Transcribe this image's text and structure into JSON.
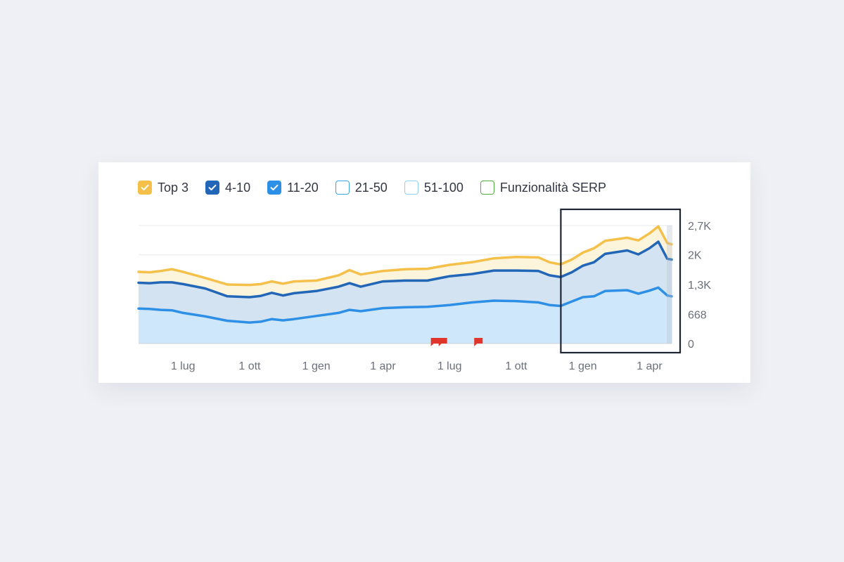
{
  "legend": {
    "items": [
      {
        "label": "Top 3",
        "checked": true,
        "color": "#f5c04a",
        "border": "#f5c04a"
      },
      {
        "label": "4-10",
        "checked": true,
        "color": "#2266b8",
        "border": "#2266b8"
      },
      {
        "label": "11-20",
        "checked": true,
        "color": "#2e8fe6",
        "border": "#2e8fe6"
      },
      {
        "label": "21-50",
        "checked": false,
        "color": "#ffffff",
        "border": "#3aa4e0"
      },
      {
        "label": "51-100",
        "checked": false,
        "color": "#ffffff",
        "border": "#8fd0f2"
      },
      {
        "label": "Funzionalità SERP",
        "checked": false,
        "color": "#ffffff",
        "border": "#4fae3c"
      }
    ]
  },
  "chart_data": {
    "type": "area",
    "title": "",
    "xlabel": "",
    "ylabel": "",
    "ylim": [
      0,
      2700
    ],
    "y_ticks": [
      {
        "value": 0,
        "label": "0"
      },
      {
        "value": 668,
        "label": "668"
      },
      {
        "value": 1350,
        "label": "1,3K"
      },
      {
        "value": 2030,
        "label": "2K"
      },
      {
        "value": 2700,
        "label": "2,7K"
      }
    ],
    "x_range": [
      0,
      24
    ],
    "x_ticks": [
      {
        "x": 2,
        "label": "1 lug"
      },
      {
        "x": 5,
        "label": "1 ott"
      },
      {
        "x": 8,
        "label": "1 gen"
      },
      {
        "x": 11,
        "label": "1 apr"
      },
      {
        "x": 14,
        "label": "1 lug"
      },
      {
        "x": 17,
        "label": "1 ott"
      },
      {
        "x": 20,
        "label": "1 gen"
      },
      {
        "x": 23,
        "label": "1 apr"
      }
    ],
    "annotations": {
      "flags": [
        13.35,
        13.7,
        15.3
      ],
      "highlight_range": [
        19.2,
        24
      ]
    },
    "series": [
      {
        "name": "Top 3",
        "color": "#f5c04a",
        "fill": "#fdf3d8",
        "points": [
          [
            0,
            1640
          ],
          [
            0.5,
            1630
          ],
          [
            1,
            1660
          ],
          [
            1.5,
            1700
          ],
          [
            2,
            1640
          ],
          [
            3,
            1500
          ],
          [
            4,
            1350
          ],
          [
            5,
            1340
          ],
          [
            5.5,
            1360
          ],
          [
            6,
            1420
          ],
          [
            6.5,
            1370
          ],
          [
            7,
            1420
          ],
          [
            8,
            1440
          ],
          [
            9,
            1560
          ],
          [
            9.5,
            1680
          ],
          [
            10,
            1580
          ],
          [
            11,
            1660
          ],
          [
            12,
            1700
          ],
          [
            13,
            1710
          ],
          [
            14,
            1800
          ],
          [
            15,
            1860
          ],
          [
            16,
            1950
          ],
          [
            17,
            1980
          ],
          [
            18,
            1970
          ],
          [
            18.5,
            1860
          ],
          [
            19,
            1810
          ],
          [
            19.5,
            1920
          ],
          [
            20,
            2080
          ],
          [
            20.5,
            2180
          ],
          [
            21,
            2350
          ],
          [
            22,
            2420
          ],
          [
            22.5,
            2360
          ],
          [
            23,
            2520
          ],
          [
            23.4,
            2680
          ],
          [
            23.8,
            2300
          ],
          [
            24,
            2270
          ]
        ]
      },
      {
        "name": "4-10",
        "color": "#2266b8",
        "fill": "#cfe1f3",
        "points": [
          [
            0,
            1390
          ],
          [
            0.5,
            1380
          ],
          [
            1,
            1400
          ],
          [
            1.5,
            1400
          ],
          [
            2,
            1360
          ],
          [
            3,
            1260
          ],
          [
            4,
            1080
          ],
          [
            5,
            1060
          ],
          [
            5.5,
            1090
          ],
          [
            6,
            1160
          ],
          [
            6.5,
            1100
          ],
          [
            7,
            1150
          ],
          [
            8,
            1200
          ],
          [
            9,
            1300
          ],
          [
            9.5,
            1380
          ],
          [
            10,
            1300
          ],
          [
            11,
            1420
          ],
          [
            12,
            1440
          ],
          [
            13,
            1440
          ],
          [
            14,
            1540
          ],
          [
            15,
            1590
          ],
          [
            16,
            1670
          ],
          [
            17,
            1670
          ],
          [
            18,
            1660
          ],
          [
            18.5,
            1560
          ],
          [
            19,
            1520
          ],
          [
            19.5,
            1630
          ],
          [
            20,
            1780
          ],
          [
            20.5,
            1860
          ],
          [
            21,
            2050
          ],
          [
            22,
            2130
          ],
          [
            22.5,
            2040
          ],
          [
            23,
            2180
          ],
          [
            23.4,
            2330
          ],
          [
            23.8,
            1940
          ],
          [
            24,
            1920
          ]
        ]
      },
      {
        "name": "11-20",
        "color": "#2e8fe6",
        "fill": "#cde7fb",
        "points": [
          [
            0,
            800
          ],
          [
            0.5,
            790
          ],
          [
            1,
            770
          ],
          [
            1.5,
            760
          ],
          [
            2,
            700
          ],
          [
            3,
            620
          ],
          [
            4,
            520
          ],
          [
            5,
            480
          ],
          [
            5.5,
            500
          ],
          [
            6,
            560
          ],
          [
            6.5,
            530
          ],
          [
            7,
            560
          ],
          [
            8,
            630
          ],
          [
            9,
            700
          ],
          [
            9.5,
            770
          ],
          [
            10,
            740
          ],
          [
            11,
            810
          ],
          [
            12,
            830
          ],
          [
            13,
            840
          ],
          [
            14,
            880
          ],
          [
            15,
            940
          ],
          [
            16,
            980
          ],
          [
            17,
            970
          ],
          [
            18,
            940
          ],
          [
            18.5,
            880
          ],
          [
            19,
            860
          ],
          [
            19.5,
            960
          ],
          [
            20,
            1060
          ],
          [
            20.5,
            1080
          ],
          [
            21,
            1200
          ],
          [
            22,
            1220
          ],
          [
            22.5,
            1140
          ],
          [
            23,
            1210
          ],
          [
            23.4,
            1280
          ],
          [
            23.8,
            1100
          ],
          [
            24,
            1080
          ]
        ]
      }
    ]
  }
}
